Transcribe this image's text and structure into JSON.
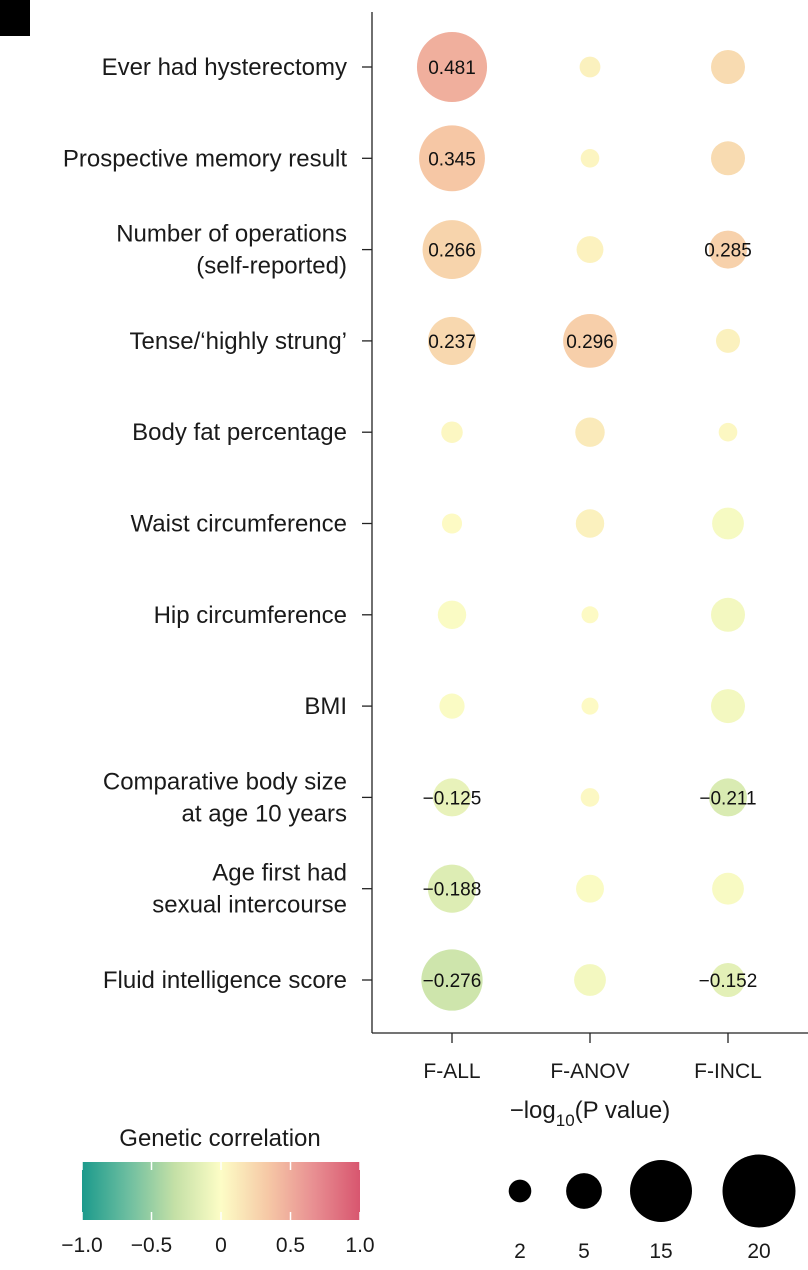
{
  "chart_data": {
    "type": "bubble-matrix",
    "categories": [
      "F-ALL",
      "F-ANOV",
      "F-INCL"
    ],
    "traits": [
      "Ever had hysterectomy",
      "Prospective memory result",
      "Number of operations\n(self-reported)",
      "Tense/‘highly strung’",
      "Body fat percentage",
      "Waist circumference",
      "Hip circumference",
      "BMI",
      "Comparative body size\nat age 10 years",
      "Age first had\nsexual intercourse",
      "Fluid intelligence score"
    ],
    "cells": [
      [
        {
          "rg": 0.481,
          "logp": 17,
          "label": "0.481"
        },
        {
          "rg": 0.08,
          "logp": 1.5,
          "label": ""
        },
        {
          "rg": 0.22,
          "logp": 4,
          "label": ""
        }
      ],
      [
        {
          "rg": 0.345,
          "logp": 15,
          "label": "0.345"
        },
        {
          "rg": 0.05,
          "logp": 1.2,
          "label": ""
        },
        {
          "rg": 0.22,
          "logp": 4,
          "label": ""
        }
      ],
      [
        {
          "rg": 0.266,
          "logp": 12,
          "label": "0.266"
        },
        {
          "rg": 0.07,
          "logp": 2.5,
          "label": ""
        },
        {
          "rg": 0.285,
          "logp": 5,
          "label": "0.285"
        }
      ],
      [
        {
          "rg": 0.237,
          "logp": 8,
          "label": "0.237"
        },
        {
          "rg": 0.296,
          "logp": 10,
          "label": "0.296"
        },
        {
          "rg": 0.08,
          "logp": 2,
          "label": ""
        }
      ],
      [
        {
          "rg": 0.04,
          "logp": 1.6,
          "label": ""
        },
        {
          "rg": 0.12,
          "logp": 3,
          "label": ""
        },
        {
          "rg": 0.04,
          "logp": 1.2,
          "label": ""
        }
      ],
      [
        {
          "rg": 0.02,
          "logp": 1.4,
          "label": ""
        },
        {
          "rg": 0.08,
          "logp": 2.8,
          "label": ""
        },
        {
          "rg": -0.04,
          "logp": 3.5,
          "label": ""
        }
      ],
      [
        {
          "rg": -0.02,
          "logp": 2.8,
          "label": ""
        },
        {
          "rg": 0.02,
          "logp": 1.0,
          "label": ""
        },
        {
          "rg": -0.06,
          "logp": 4,
          "label": ""
        }
      ],
      [
        {
          "rg": -0.02,
          "logp": 2.2,
          "label": ""
        },
        {
          "rg": 0.02,
          "logp": 1.0,
          "label": ""
        },
        {
          "rg": -0.06,
          "logp": 4,
          "label": ""
        }
      ],
      [
        {
          "rg": -0.125,
          "logp": 5,
          "label": "−0.125"
        },
        {
          "rg": 0.03,
          "logp": 1.2,
          "label": ""
        },
        {
          "rg": -0.211,
          "logp": 5,
          "label": "−0.211"
        }
      ],
      [
        {
          "rg": -0.188,
          "logp": 8,
          "label": "−0.188"
        },
        {
          "rg": -0.02,
          "logp": 2.7,
          "label": ""
        },
        {
          "rg": -0.03,
          "logp": 3.5,
          "label": ""
        }
      ],
      [
        {
          "rg": -0.276,
          "logp": 13,
          "label": "−0.276"
        },
        {
          "rg": -0.06,
          "logp": 3.5,
          "label": ""
        },
        {
          "rg": -0.152,
          "logp": 4,
          "label": "−0.152"
        }
      ]
    ],
    "color_legend": {
      "title": "Genetic correlation",
      "range": [
        -1.0,
        1.0
      ],
      "ticks": [
        "−1.0",
        "−0.5",
        "0",
        "0.5",
        "1.0"
      ],
      "tick_values": [
        -1.0,
        -0.5,
        0,
        0.5,
        1.0
      ],
      "colormap": [
        "#1b9a8c",
        "#6dbea0",
        "#c4e0a6",
        "#fdfdc6",
        "#f6c9a6",
        "#e88f92",
        "#d8566f"
      ]
    },
    "size_legend": {
      "title_prefix": "−log",
      "title_sub": "10",
      "title_suffix": "(P value)",
      "values": [
        2,
        5,
        15,
        20
      ],
      "labels": [
        "2",
        "5",
        "15",
        "20"
      ]
    }
  }
}
